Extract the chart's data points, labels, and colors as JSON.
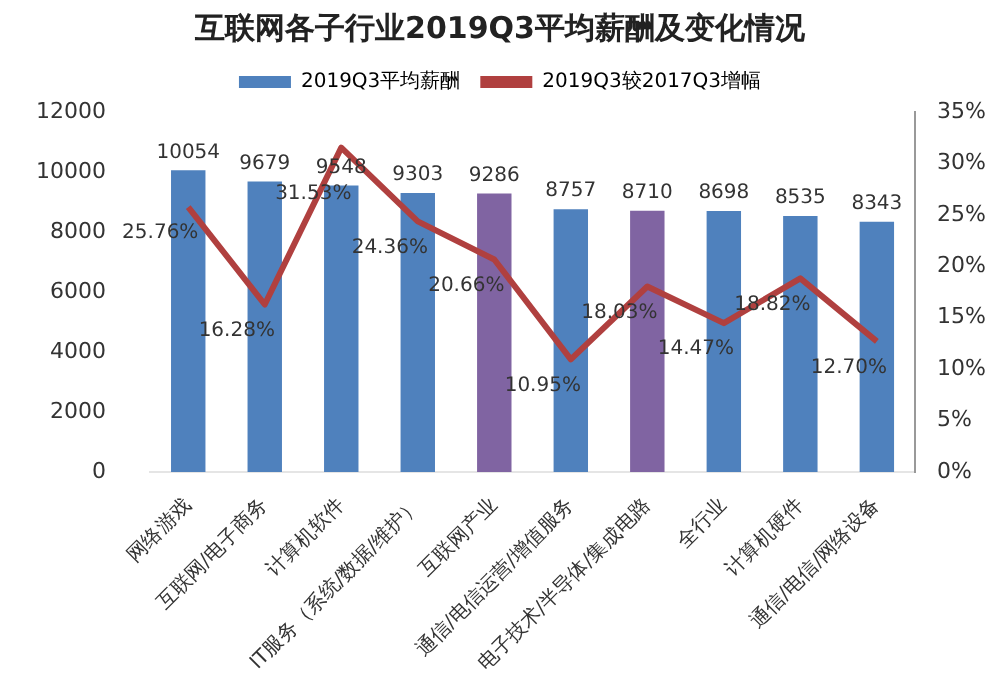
{
  "chart_data": {
    "type": "bar",
    "title": "互联网各子行业2019Q3平均薪酬及变化情况",
    "categories": [
      "网络游戏",
      "互联网/电子商务",
      "计算机软件",
      "IT服务（系统/数据/维护）",
      "互联网产业",
      "通信/电信运营/增值服务",
      "电子技术/半导体/集成电路",
      "全行业",
      "计算机硬件",
      "通信/电信/网络设备"
    ],
    "series": [
      {
        "name": "2019Q3平均薪酬",
        "type": "bar",
        "color": "#4f81bd",
        "colors": [
          "#4f81bd",
          "#4f81bd",
          "#4f81bd",
          "#4f81bd",
          "#8064a2",
          "#4f81bd",
          "#8064a2",
          "#4f81bd",
          "#4f81bd",
          "#4f81bd"
        ],
        "values": [
          10054,
          9679,
          9548,
          9303,
          9286,
          8757,
          8710,
          8698,
          8535,
          8343
        ],
        "value_labels": [
          "10054",
          "9679",
          "9548",
          "9303",
          "9286",
          "8757",
          "8710",
          "8698",
          "8535",
          "8343"
        ]
      },
      {
        "name": "2019Q3较2017Q3增幅",
        "type": "line",
        "axis": "y2",
        "color": "#b0403f",
        "values": [
          25.76,
          16.28,
          31.53,
          24.36,
          20.66,
          10.95,
          18.03,
          14.47,
          18.82,
          12.7
        ],
        "value_labels": [
          "25.76%",
          "16.28%",
          "31.53%",
          "24.36%",
          "20.66%",
          "10.95%",
          "18.03%",
          "14.47%",
          "18.82%",
          "12.70%"
        ]
      }
    ],
    "ylim": [
      0,
      12000
    ],
    "yticks": [
      0,
      2000,
      4000,
      6000,
      8000,
      10000,
      12000
    ],
    "y2lim": [
      0,
      35
    ],
    "y2ticks": [
      {
        "value": 0,
        "label": "0%"
      },
      {
        "value": 5,
        "label": "5%"
      },
      {
        "value": 10,
        "label": "10%"
      },
      {
        "value": 15,
        "label": "15%"
      },
      {
        "value": 20,
        "label": "20%"
      },
      {
        "value": 25,
        "label": "25%"
      },
      {
        "value": 30,
        "label": "30%"
      },
      {
        "value": 35,
        "label": "35%"
      }
    ],
    "grid": false,
    "legend": "top",
    "marker": "none",
    "line_style": "solid"
  }
}
